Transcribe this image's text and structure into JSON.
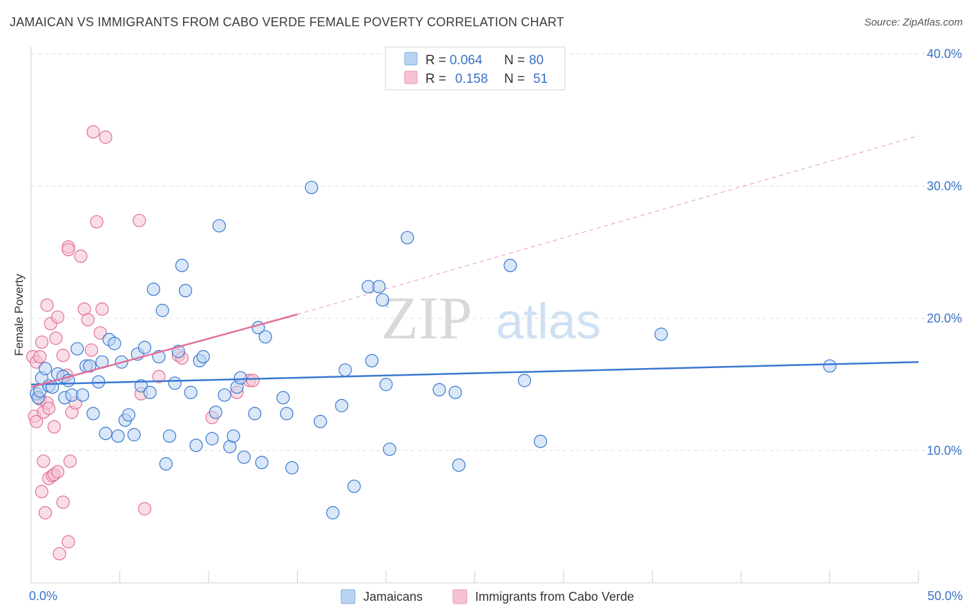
{
  "header": {
    "title": "JAMAICAN VS IMMIGRANTS FROM CABO VERDE FEMALE POVERTY CORRELATION CHART",
    "source": "Source: ZipAtlas.com"
  },
  "watermark": {
    "zip": "ZIP",
    "atlas": "atlas"
  },
  "colors": {
    "jamaicans": "#3a78d0",
    "jamaicans_fill": "#b9d3f2",
    "caboverde": "#e07099",
    "caboverde_fill": "#f6c3d3",
    "tick": "#3a72c8"
  },
  "legend": {
    "rows": [
      {
        "r_label": "R = ",
        "r_value": "0.064",
        "n_label": "N = ",
        "n_value": "80"
      },
      {
        "r_label": "R = ",
        "r_value": "0.158",
        "n_label": "N = ",
        "n_value": "51"
      }
    ]
  },
  "chart_data": {
    "type": "scatter",
    "title": "JAMAICAN VS IMMIGRANTS FROM CABO VERDE FEMALE POVERTY CORRELATION CHART",
    "xlabel": "",
    "ylabel": "Female Poverty",
    "xlim": [
      0,
      50
    ],
    "ylim": [
      0,
      40
    ],
    "x_tick_labels": [
      "0.0%",
      "50.0%"
    ],
    "y_ticks": [
      10,
      20,
      30,
      40
    ],
    "y_tick_labels": [
      "10.0%",
      "20.0%",
      "30.0%",
      "40.0%"
    ],
    "grid": true,
    "legend_position": "top-center",
    "series": [
      {
        "name": "Jamaicans",
        "r": 0.064,
        "n": 80,
        "trend": {
          "x": [
            0,
            50
          ],
          "y": [
            15.0,
            16.7
          ],
          "style": "solid"
        },
        "points": [
          [
            0.3,
            14.3
          ],
          [
            0.4,
            14.0
          ],
          [
            0.5,
            14.5
          ],
          [
            0.6,
            15.5
          ],
          [
            0.8,
            16.2
          ],
          [
            1.0,
            14.9
          ],
          [
            1.2,
            14.8
          ],
          [
            1.5,
            15.8
          ],
          [
            1.8,
            15.6
          ],
          [
            1.9,
            14.0
          ],
          [
            2.1,
            15.3
          ],
          [
            2.3,
            14.2
          ],
          [
            2.6,
            17.7
          ],
          [
            2.9,
            14.2
          ],
          [
            3.1,
            16.4
          ],
          [
            3.3,
            16.4
          ],
          [
            3.5,
            12.8
          ],
          [
            3.8,
            15.2
          ],
          [
            4.0,
            16.7
          ],
          [
            4.2,
            11.3
          ],
          [
            4.4,
            18.4
          ],
          [
            4.7,
            18.1
          ],
          [
            4.9,
            11.1
          ],
          [
            5.1,
            16.7
          ],
          [
            5.3,
            12.3
          ],
          [
            5.5,
            12.7
          ],
          [
            5.8,
            11.2
          ],
          [
            6.0,
            17.3
          ],
          [
            6.2,
            14.9
          ],
          [
            6.4,
            17.8
          ],
          [
            6.7,
            14.4
          ],
          [
            6.9,
            22.2
          ],
          [
            7.2,
            17.1
          ],
          [
            7.4,
            20.6
          ],
          [
            7.6,
            9.0
          ],
          [
            7.8,
            11.1
          ],
          [
            8.1,
            15.1
          ],
          [
            8.3,
            17.5
          ],
          [
            8.5,
            24.0
          ],
          [
            8.7,
            22.1
          ],
          [
            9.0,
            14.4
          ],
          [
            9.3,
            10.4
          ],
          [
            9.5,
            16.8
          ],
          [
            9.7,
            17.1
          ],
          [
            10.2,
            10.9
          ],
          [
            10.4,
            12.9
          ],
          [
            10.6,
            27.0
          ],
          [
            10.9,
            14.2
          ],
          [
            11.2,
            10.3
          ],
          [
            11.4,
            11.1
          ],
          [
            11.6,
            14.8
          ],
          [
            11.8,
            15.5
          ],
          [
            12.0,
            9.5
          ],
          [
            12.6,
            12.8
          ],
          [
            12.8,
            19.3
          ],
          [
            13.0,
            9.1
          ],
          [
            13.2,
            18.6
          ],
          [
            14.2,
            14.0
          ],
          [
            14.4,
            12.8
          ],
          [
            14.7,
            8.7
          ],
          [
            15.8,
            29.9
          ],
          [
            16.3,
            12.2
          ],
          [
            17.0,
            5.3
          ],
          [
            17.5,
            13.4
          ],
          [
            17.7,
            16.1
          ],
          [
            18.2,
            7.3
          ],
          [
            19.0,
            22.4
          ],
          [
            19.2,
            16.8
          ],
          [
            19.6,
            22.4
          ],
          [
            19.8,
            21.4
          ],
          [
            20.0,
            15.0
          ],
          [
            20.2,
            10.1
          ],
          [
            21.2,
            26.1
          ],
          [
            23.0,
            14.6
          ],
          [
            23.9,
            14.4
          ],
          [
            24.1,
            8.9
          ],
          [
            27.0,
            24.0
          ],
          [
            27.8,
            15.3
          ],
          [
            28.7,
            10.7
          ],
          [
            35.5,
            18.8
          ],
          [
            45.0,
            16.4
          ]
        ]
      },
      {
        "name": "Immigrants from Cabo Verde",
        "r": 0.158,
        "n": 51,
        "trend": {
          "x": [
            0,
            15
          ],
          "y": [
            14.8,
            20.3
          ],
          "style": "solid"
        },
        "trend_extension": {
          "x": [
            15,
            50
          ],
          "y": [
            20.3,
            33.8
          ],
          "style": "dashed"
        },
        "points": [
          [
            0.1,
            17.1
          ],
          [
            0.2,
            12.6
          ],
          [
            0.3,
            12.2
          ],
          [
            0.3,
            16.7
          ],
          [
            0.5,
            13.9
          ],
          [
            0.5,
            17.1
          ],
          [
            0.6,
            18.2
          ],
          [
            0.6,
            6.9
          ],
          [
            0.7,
            12.9
          ],
          [
            0.7,
            9.2
          ],
          [
            0.8,
            5.3
          ],
          [
            0.9,
            13.6
          ],
          [
            0.9,
            21.0
          ],
          [
            1.0,
            13.2
          ],
          [
            1.0,
            7.9
          ],
          [
            1.1,
            19.6
          ],
          [
            1.2,
            8.1
          ],
          [
            1.3,
            11.8
          ],
          [
            1.3,
            8.2
          ],
          [
            1.4,
            18.5
          ],
          [
            1.5,
            8.4
          ],
          [
            1.5,
            20.1
          ],
          [
            1.6,
            2.2
          ],
          [
            1.8,
            6.1
          ],
          [
            1.8,
            17.2
          ],
          [
            2.0,
            15.7
          ],
          [
            2.1,
            25.4
          ],
          [
            2.1,
            25.2
          ],
          [
            2.1,
            3.1
          ],
          [
            2.2,
            9.2
          ],
          [
            2.3,
            12.9
          ],
          [
            2.5,
            13.6
          ],
          [
            2.8,
            24.7
          ],
          [
            3.0,
            20.7
          ],
          [
            3.2,
            19.9
          ],
          [
            3.4,
            17.6
          ],
          [
            3.5,
            34.1
          ],
          [
            3.7,
            27.3
          ],
          [
            3.9,
            18.9
          ],
          [
            4.0,
            20.7
          ],
          [
            4.2,
            33.7
          ],
          [
            6.1,
            27.4
          ],
          [
            6.2,
            14.3
          ],
          [
            6.4,
            5.6
          ],
          [
            7.2,
            15.6
          ],
          [
            8.3,
            17.2
          ],
          [
            8.5,
            17.0
          ],
          [
            10.2,
            12.5
          ],
          [
            11.6,
            14.4
          ],
          [
            12.3,
            15.3
          ],
          [
            12.5,
            15.3
          ]
        ]
      }
    ]
  },
  "bottom_legend": {
    "items": [
      "Jamaicans",
      "Immigrants from Cabo Verde"
    ]
  }
}
